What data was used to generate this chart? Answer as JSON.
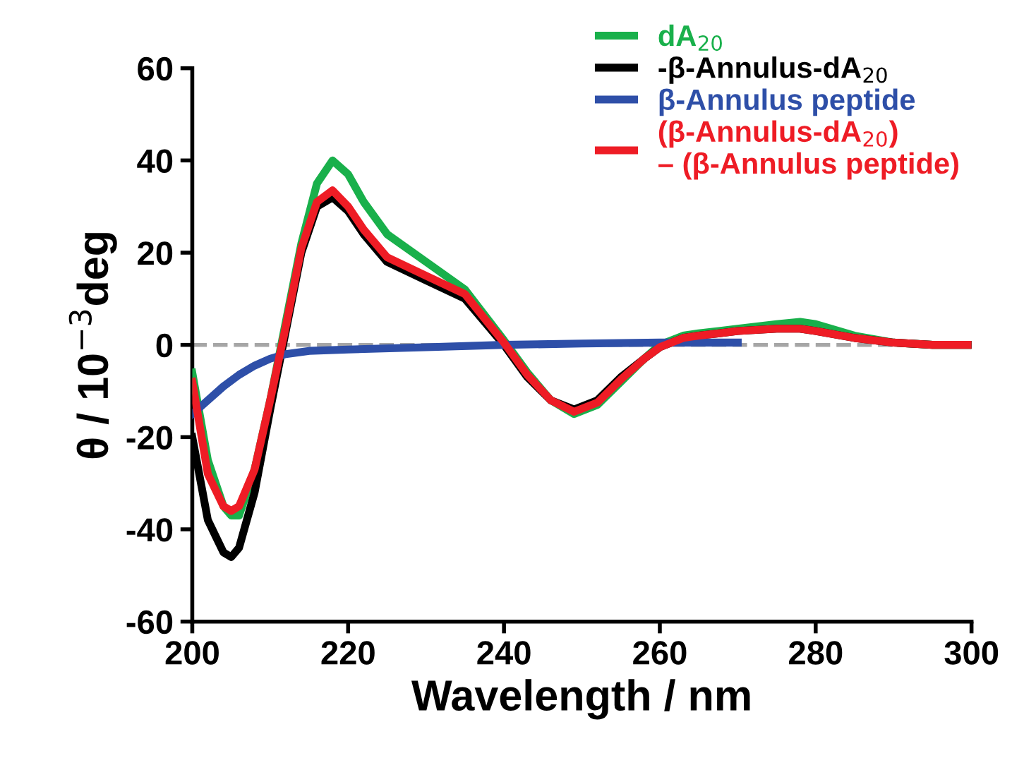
{
  "chart_data": {
    "type": "line",
    "xlabel": "Wavelength / nm",
    "ylabel": "θ / 10$^{−3}$deg",
    "xlim": [
      200,
      300
    ],
    "xticks": [
      200,
      220,
      240,
      260,
      280,
      300
    ],
    "ylim": [
      -60,
      60
    ],
    "yticks": [
      -60,
      -40,
      -20,
      0,
      20,
      40,
      60
    ],
    "grid": false,
    "legend": "top right",
    "line_style": "solid",
    "marker": "none",
    "ref_lines": [
      {
        "axis": "y",
        "value": 0,
        "label": null,
        "color": "#a6a6a6",
        "line_style": "dashed"
      }
    ],
    "series": [
      {
        "name": "dA$_{20}$",
        "color": "#19b04b",
        "x": [
          200,
          202,
          204,
          205,
          206,
          208,
          210,
          212,
          214,
          216,
          218,
          220,
          222,
          225,
          230,
          235,
          240,
          243,
          246,
          249,
          252,
          255,
          258,
          260,
          263,
          265,
          270,
          275,
          278,
          280,
          285,
          290,
          295,
          300
        ],
        "values": [
          -6,
          -25,
          -35,
          -37,
          -37,
          -27,
          -12,
          5,
          22,
          35,
          40,
          37,
          31,
          24,
          18,
          12,
          1,
          -6,
          -12,
          -15,
          -13,
          -8,
          -3,
          0,
          2,
          2.5,
          3.5,
          4.5,
          5,
          4.5,
          2,
          0.5,
          0,
          0
        ]
      },
      {
        "name": "-β-Annulus-dA$_{20}$",
        "color": "#000000",
        "x": [
          200,
          202,
          204,
          205,
          206,
          208,
          210,
          212,
          214,
          216,
          218,
          220,
          222,
          225,
          230,
          235,
          240,
          243,
          246,
          249,
          252,
          255,
          258,
          260,
          263,
          265,
          270,
          275,
          278,
          280,
          285,
          290,
          295,
          300
        ],
        "values": [
          -20,
          -38,
          -45,
          -46,
          -44,
          -32,
          -14,
          3,
          20,
          30,
          32,
          29,
          24,
          18,
          14,
          10,
          0,
          -7,
          -12,
          -14,
          -12,
          -7,
          -3,
          -0.5,
          1.5,
          2,
          3,
          3.5,
          3.5,
          3,
          1.5,
          0.5,
          0,
          0
        ]
      },
      {
        "name": "β-Annulus peptide",
        "color": "#2e4fa8",
        "x": [
          200,
          202,
          204,
          206,
          208,
          210,
          212,
          215,
          220,
          230,
          240,
          250,
          260,
          270
        ],
        "values": [
          -15,
          -12,
          -9,
          -6.5,
          -4.5,
          -3,
          -2,
          -1.3,
          -1,
          -0.5,
          0,
          0.3,
          0.5,
          0.5
        ]
      },
      {
        "name": "(β-Annulus-dA$_{20}$)\n– (β-Annulus peptide)",
        "color": "#ee1c25",
        "x": [
          200,
          202,
          204,
          205,
          206,
          208,
          210,
          212,
          214,
          216,
          218,
          220,
          222,
          225,
          230,
          235,
          240,
          243,
          246,
          249,
          252,
          255,
          258,
          260,
          263,
          265,
          270,
          275,
          278,
          280,
          285,
          290,
          295,
          300
        ],
        "values": [
          -8,
          -28,
          -35,
          -36,
          -35,
          -27,
          -12,
          4,
          21,
          31,
          33.5,
          30,
          25,
          19,
          15,
          11,
          0.5,
          -6.5,
          -12,
          -14.5,
          -12.5,
          -7.5,
          -3,
          -0.5,
          1.5,
          2,
          3,
          3.5,
          3.5,
          3,
          1.5,
          0.5,
          0,
          0
        ]
      }
    ]
  }
}
